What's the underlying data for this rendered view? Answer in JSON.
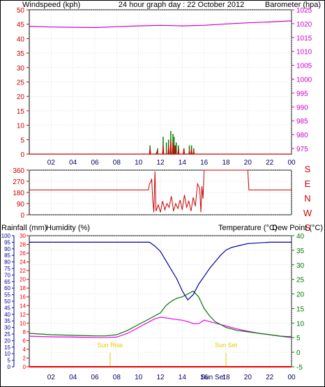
{
  "title": "24 hour graph day : 22 October 2012",
  "colors": {
    "wind": "#cc0000",
    "gust": "#008000",
    "baro": "#cc00cc",
    "humidity": "#000099",
    "temperature": "#007700",
    "dewpoint": "#ee00ee",
    "rain": "#ee0000",
    "sun": "#e6c800",
    "axis": "#000000",
    "grid": "#c0c0c0",
    "text_title": "#000099"
  },
  "hour_labels": [
    "02",
    "04",
    "06",
    "08",
    "10",
    "12",
    "14",
    "16",
    "18",
    "20",
    "22",
    "00"
  ],
  "chart_data": [
    {
      "type": "line",
      "name": "wind_baro",
      "left_label": "Windspeed (kph)",
      "right_label": "Barometer (hpa)",
      "left_ticks": [
        0,
        5,
        10,
        15,
        20,
        25,
        30,
        35,
        40,
        45,
        50
      ],
      "right_ticks": [
        975,
        980,
        985,
        990,
        995,
        1000,
        1005,
        1010,
        1015,
        1020,
        1025
      ],
      "left_lim": [
        0,
        50
      ],
      "right_lim": [
        973,
        1025
      ],
      "xlim": [
        0,
        24
      ],
      "barometer": {
        "x": [
          0,
          2,
          4,
          6,
          8,
          10,
          12,
          14,
          16,
          18,
          20,
          22,
          24
        ],
        "y": [
          1019.0,
          1018.8,
          1018.7,
          1018.6,
          1018.9,
          1019.2,
          1019.4,
          1019.2,
          1019.4,
          1019.9,
          1020.3,
          1020.6,
          1021.0
        ]
      },
      "wind": {
        "x": [
          0,
          11.0,
          11.05,
          11.1,
          11.6,
          11.7,
          11.75,
          12.2,
          12.25,
          12.3,
          12.7,
          12.75,
          12.8,
          12.9,
          12.95,
          13.0,
          13.1,
          13.15,
          13.2,
          13.3,
          13.35,
          13.4,
          13.6,
          13.65,
          13.7,
          14.1,
          14.15,
          14.2,
          14.6,
          14.65,
          14.7,
          14.8,
          14.85,
          14.9,
          15.0,
          15.05,
          15.1,
          15.5,
          24
        ],
        "y": [
          0,
          0,
          2,
          0,
          0,
          1,
          0,
          0,
          3,
          0,
          0,
          3,
          0,
          0,
          5,
          0,
          0,
          4,
          0,
          0,
          3,
          0,
          0,
          2,
          0,
          0,
          2,
          0,
          0,
          1,
          0,
          0,
          2,
          0,
          0,
          1,
          0,
          0,
          0
        ]
      },
      "gust": {
        "x": [
          11.05,
          11.75,
          12.25,
          12.55,
          12.75,
          12.95,
          13.15,
          13.25,
          13.35,
          13.45,
          13.65,
          14.15,
          14.65,
          14.85,
          15.05
        ],
        "y": [
          3,
          2,
          6,
          4,
          5,
          8,
          7,
          6,
          3,
          4,
          3,
          2,
          3,
          3,
          2
        ]
      }
    },
    {
      "type": "line",
      "name": "wind_direction",
      "left_ticks": [
        0,
        90,
        180,
        270,
        360
      ],
      "left_lim": [
        0,
        360
      ],
      "xlim": [
        0,
        24
      ],
      "right_labels": [
        "S",
        "E",
        "N",
        "W",
        "S"
      ],
      "direction": {
        "x": [
          0,
          10.9,
          11.0,
          11.1,
          11.2,
          11.3,
          11.4,
          11.5,
          11.6,
          11.8,
          12.0,
          12.2,
          12.4,
          12.6,
          12.8,
          13.0,
          13.2,
          13.4,
          13.6,
          13.8,
          14.0,
          14.2,
          14.4,
          14.6,
          14.8,
          15.0,
          15.2,
          15.4,
          15.6,
          15.7,
          15.8,
          15.9,
          16.0,
          16.1,
          16.2,
          16.3,
          20.0,
          20.1,
          24
        ],
        "y": [
          200,
          200,
          250,
          260,
          290,
          120,
          20,
          350,
          30,
          80,
          20,
          110,
          40,
          90,
          60,
          150,
          30,
          90,
          50,
          120,
          40,
          160,
          60,
          110,
          30,
          140,
          70,
          250,
          210,
          20,
          230,
          130,
          360,
          360,
          360,
          360,
          360,
          200,
          200
        ]
      }
    },
    {
      "type": "line",
      "name": "temp_humidity",
      "left_labels": [
        "Rainfall (mm)",
        "Humidity (%)"
      ],
      "right_labels": [
        "Temperature (°C)",
        "Dew Point (°C)"
      ],
      "humidity_ticks": [
        0,
        5,
        10,
        15,
        20,
        25,
        30,
        35,
        40,
        45,
        50,
        55,
        60,
        65,
        70,
        75,
        80,
        85,
        90,
        95,
        100
      ],
      "rain_ticks": [
        0,
        2,
        4,
        6,
        8,
        10,
        12,
        14,
        16,
        18,
        20,
        22,
        24,
        26,
        28,
        30
      ],
      "temp_ticks": [
        -5,
        0,
        5,
        10,
        15,
        20,
        25,
        30,
        35,
        40
      ],
      "humidity_lim": [
        0,
        100
      ],
      "temp_lim": [
        -5,
        40
      ],
      "xlim": [
        0,
        24
      ],
      "humidity": {
        "x": [
          0,
          11.0,
          11.5,
          12.0,
          12.5,
          13.0,
          13.5,
          14.0,
          14.5,
          15.0,
          15.5,
          16.0,
          16.5,
          17.0,
          17.5,
          18.0,
          18.5,
          19.0,
          20.0,
          22.0,
          24
        ],
        "y": [
          95,
          95,
          92,
          88,
          81,
          74,
          67,
          58,
          51,
          55,
          63,
          69,
          75,
          80,
          85,
          89,
          91,
          92,
          94,
          95,
          95
        ]
      },
      "temperature": {
        "x": [
          0,
          2,
          4,
          6,
          7,
          8,
          9,
          10,
          11,
          12,
          12.5,
          13,
          13.5,
          14,
          14.5,
          15,
          15.5,
          16,
          16.5,
          17,
          18,
          19,
          20,
          21,
          22,
          23,
          24
        ],
        "y": [
          6.5,
          6,
          5.8,
          5.6,
          5.6,
          6.0,
          7.5,
          9.5,
          11.5,
          13.5,
          16,
          17.5,
          18.5,
          19,
          20,
          21,
          19,
          15,
          12.5,
          10.5,
          8.5,
          7.5,
          7.0,
          6.5,
          6.0,
          5.5,
          5.3
        ]
      },
      "dewpoint": {
        "x": [
          0,
          2,
          4,
          6,
          7,
          8,
          9,
          10,
          11,
          11.5,
          12,
          12.5,
          13,
          13.5,
          14,
          14.5,
          15,
          15.5,
          16,
          16.5,
          17,
          18,
          19,
          20,
          21,
          22,
          23,
          24
        ],
        "y": [
          5.5,
          5.3,
          5.2,
          5.0,
          5.0,
          5.2,
          6.5,
          8.5,
          10.5,
          11.5,
          12,
          11.8,
          11.5,
          11.2,
          11.0,
          10.5,
          9.8,
          9.8,
          11,
          10.5,
          10,
          9,
          8,
          7.2,
          6.5,
          6.0,
          5.5,
          5.0
        ]
      },
      "rain": {
        "x": [
          0,
          24
        ],
        "y": [
          0,
          0
        ]
      },
      "annotations": [
        {
          "text": "Sun Rise",
          "x": 7.4
        },
        {
          "text": "Sun Set",
          "x": 18.0
        }
      ],
      "bottom_hour_labels": [
        "02",
        "04",
        "06",
        "08",
        "10",
        "12",
        "14",
        "16",
        "18",
        "20",
        "22",
        "00"
      ],
      "bottom_overlap_label": "Sun Set"
    }
  ]
}
